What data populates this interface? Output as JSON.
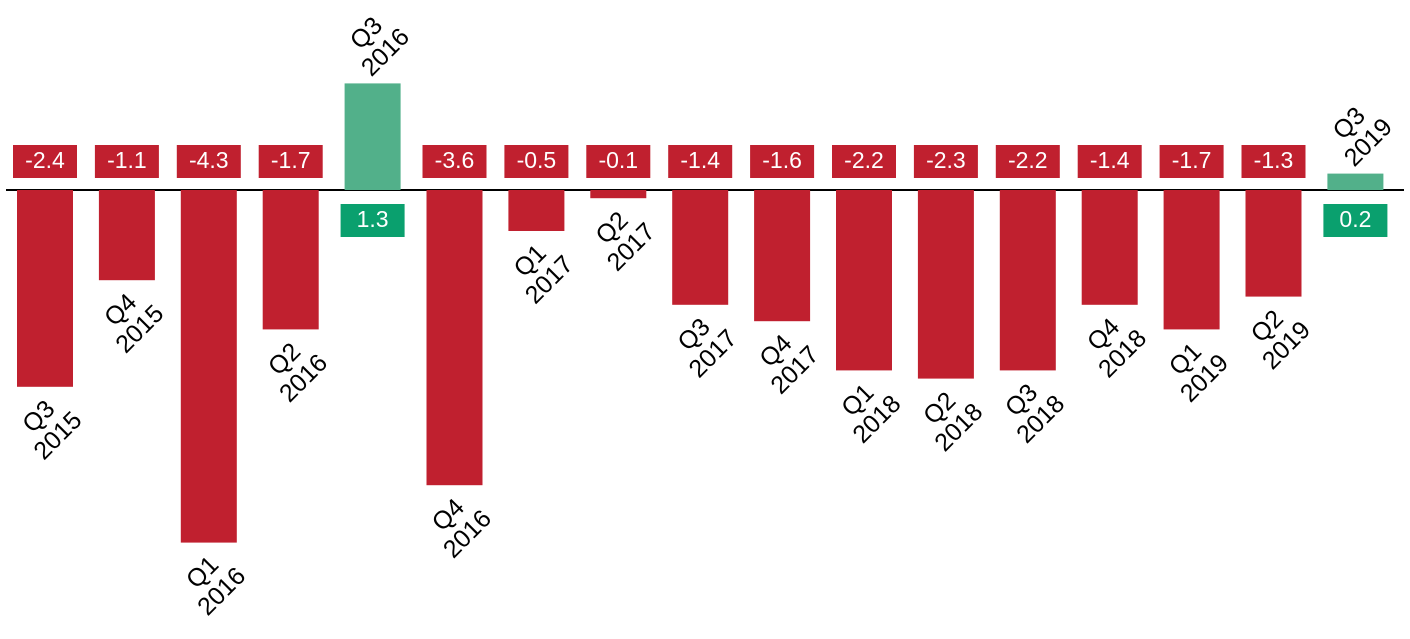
{
  "chart_data": {
    "type": "bar",
    "categories": [
      [
        "Q3",
        "2015"
      ],
      [
        "Q4",
        "2015"
      ],
      [
        "Q1",
        "2016"
      ],
      [
        "Q2",
        "2016"
      ],
      [
        "Q3",
        "2016"
      ],
      [
        "Q4",
        "2016"
      ],
      [
        "Q1",
        "2017"
      ],
      [
        "Q2",
        "2017"
      ],
      [
        "Q3",
        "2017"
      ],
      [
        "Q4",
        "2017"
      ],
      [
        "Q1",
        "2018"
      ],
      [
        "Q2",
        "2018"
      ],
      [
        "Q3",
        "2018"
      ],
      [
        "Q4",
        "2018"
      ],
      [
        "Q1",
        "2019"
      ],
      [
        "Q2",
        "2019"
      ],
      [
        "Q3",
        "2019"
      ]
    ],
    "values": [
      -2.4,
      -1.1,
      -4.3,
      -1.7,
      1.3,
      -3.6,
      -0.5,
      -0.1,
      -1.4,
      -1.6,
      -2.2,
      -2.3,
      -2.2,
      -1.4,
      -1.7,
      -1.3,
      0.2
    ],
    "negative_color": "#c0202f",
    "positive_color": "#52b08a"
  }
}
